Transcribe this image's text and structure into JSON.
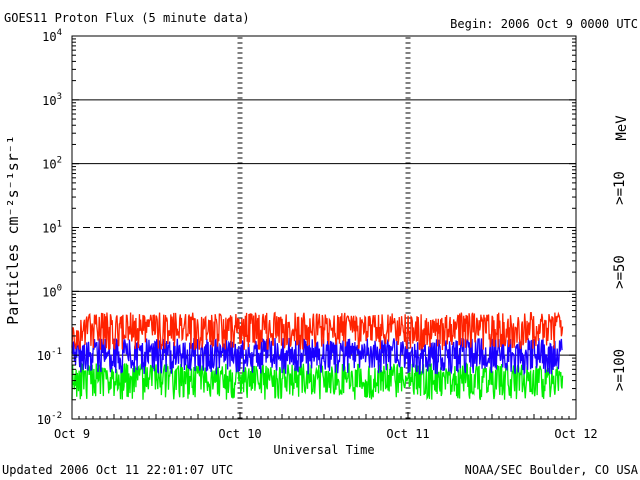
{
  "chart_data": {
    "type": "line",
    "title": "GOES11 Proton Flux (5 minute data)",
    "begin": "Begin: 2006 Oct 9 0000 UTC",
    "updated": "Updated 2006 Oct 11 22:01:07 UTC",
    "credit": "NOAA/SEC Boulder, CO USA",
    "xlabel": "Universal Time",
    "ylabel": "Particles cm⁻²s⁻¹sr⁻¹",
    "yscale": "log",
    "ylim": [
      0.01,
      10000
    ],
    "y_ticks": [
      {
        "exp": "-2"
      },
      {
        "exp": "-1"
      },
      {
        "exp": "0"
      },
      {
        "exp": "1"
      },
      {
        "exp": "2"
      },
      {
        "exp": "3"
      },
      {
        "exp": "4"
      }
    ],
    "y_tick_base": "10",
    "x_ticks": [
      "Oct 9",
      "Oct 10",
      "Oct 11",
      "Oct 12"
    ],
    "x_range_days": [
      0,
      3
    ],
    "data_end_day": 2.92,
    "threshold_lines": [
      {
        "value": 1,
        "style": "solid"
      },
      {
        "value": 10,
        "style": "dashed"
      },
      {
        "value": 100,
        "style": "solid"
      },
      {
        "value": 1000,
        "style": "solid"
      },
      {
        "value": 0.1,
        "style": "solid"
      }
    ],
    "energy_unit": "MeV",
    "series": [
      {
        "name": ">=10",
        "color": "#ff2200",
        "min": 0.12,
        "max": 0.5
      },
      {
        "name": ">=50",
        "color": "#1a00ff",
        "min": 0.05,
        "max": 0.2
      },
      {
        "name": ">=100",
        "color": "#00ee00",
        "min": 0.02,
        "max": 0.08
      }
    ]
  }
}
